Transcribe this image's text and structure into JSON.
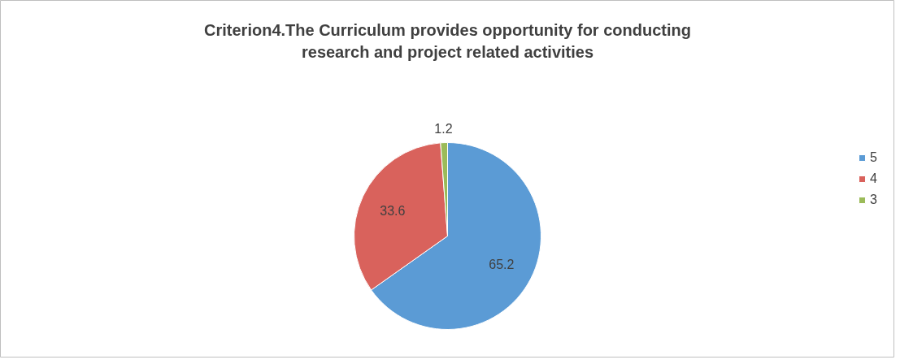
{
  "chart_data": {
    "type": "pie",
    "title": "Criterion4.The Curriculum provides opportunity for conducting research and project related activities",
    "categories": [
      "5",
      "4",
      "3"
    ],
    "values": [
      65.2,
      33.6,
      1.2
    ],
    "colors": [
      "#5b9bd5",
      "#d9625c",
      "#9bbb59"
    ],
    "data_labels": true,
    "legend": "right"
  }
}
